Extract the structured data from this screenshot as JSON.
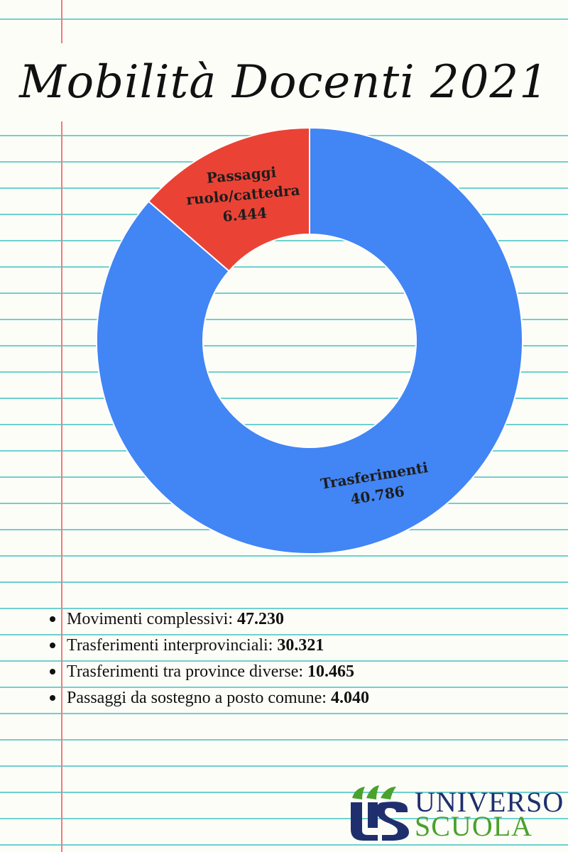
{
  "title": "Mobilità Docenti 2021",
  "chart_data": {
    "type": "pie",
    "title": "Mobilità Docenti 2021",
    "donut": true,
    "slices": [
      {
        "label": [
          "Passaggi",
          "ruolo/cattedra"
        ],
        "value_text": "6.444",
        "value": 6444,
        "color": "#ea4335"
      },
      {
        "label": [
          "Trasferimenti"
        ],
        "value_text": "40.786",
        "value": 40786,
        "color": "#4285f4"
      }
    ]
  },
  "facts": [
    {
      "label": "Movimenti complessivi: ",
      "value": "47.230"
    },
    {
      "label": "Trasferimenti interprovinciali: ",
      "value": "30.321"
    },
    {
      "label": "Trasferimenti tra province diverse: ",
      "value": "10.465"
    },
    {
      "label": "Passaggi da sostegno a posto comune: ",
      "value": "4.040"
    }
  ],
  "logo": {
    "top": "UNIVERSO",
    "bottom": "SCUOLA",
    "colors": {
      "navy": "#1f2f6e",
      "green": "#4aa12c"
    }
  }
}
